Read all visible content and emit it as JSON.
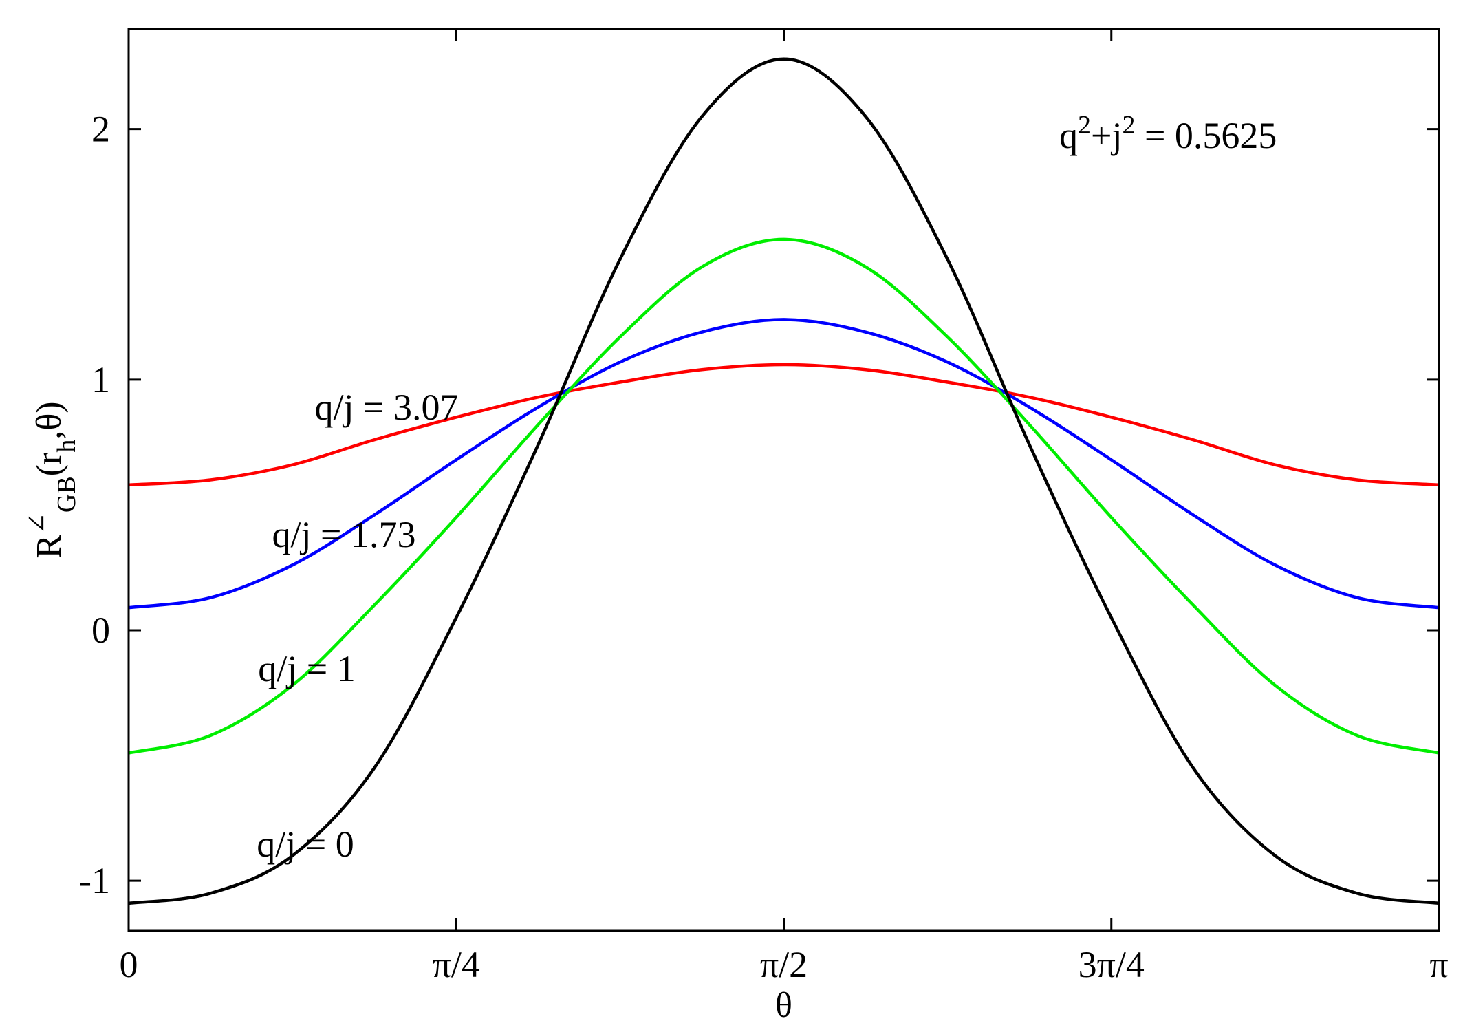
{
  "chart_data": {
    "type": "line",
    "xlabel": "θ",
    "ylabel": {
      "base": "R",
      "sup": "∠",
      "sub": "GB",
      "args_pre": "(r",
      "args_sub": "h",
      "args_post": ",θ)"
    },
    "xlim": [
      0,
      3.14159265
    ],
    "ylim": [
      -1.2,
      2.4
    ],
    "x_ticks": [
      {
        "value": 0,
        "label": "0"
      },
      {
        "value": 0.78539816,
        "label": "π/4"
      },
      {
        "value": 1.57079633,
        "label": "π/2"
      },
      {
        "value": 2.35619449,
        "label": "3π/4"
      },
      {
        "value": 3.14159265,
        "label": "π"
      }
    ],
    "y_ticks": [
      {
        "value": -1,
        "label": "-1"
      },
      {
        "value": 0,
        "label": "0"
      },
      {
        "value": 1,
        "label": "1"
      },
      {
        "value": 2,
        "label": "2"
      }
    ],
    "annotation": {
      "q": "q",
      "sup1": "2",
      "plus": "+j",
      "sup2": "2",
      "rest": " = 0.5625"
    },
    "series": [
      {
        "name": "q/j = 3.07",
        "color": "#ff0000",
        "x": [
          0,
          0.19635,
          0.3927,
          0.58905,
          0.7854,
          0.98175,
          1.1781,
          1.37445,
          1.5708,
          1.76715,
          1.9635,
          2.15985,
          2.35619,
          2.55254,
          2.74889,
          2.94524,
          3.14159
        ],
        "y": [
          0.58,
          0.6,
          0.66,
          0.76,
          0.85,
          0.93,
          0.99,
          1.04,
          1.06,
          1.04,
          0.99,
          0.93,
          0.85,
          0.76,
          0.66,
          0.6,
          0.58
        ]
      },
      {
        "name": "q/j = 1.73",
        "color": "#0000ff",
        "x": [
          0,
          0.19635,
          0.3927,
          0.58905,
          0.7854,
          0.98175,
          1.1781,
          1.37445,
          1.5708,
          1.76715,
          1.9635,
          2.15985,
          2.35619,
          2.55254,
          2.74889,
          2.94524,
          3.14159
        ],
        "y": [
          0.09,
          0.13,
          0.26,
          0.46,
          0.68,
          0.89,
          1.07,
          1.19,
          1.24,
          1.19,
          1.07,
          0.89,
          0.68,
          0.46,
          0.26,
          0.13,
          0.09
        ]
      },
      {
        "name": "q/j = 1",
        "color": "#00ee00",
        "x": [
          0,
          0.19635,
          0.3927,
          0.58905,
          0.7854,
          0.98175,
          1.1781,
          1.37445,
          1.5708,
          1.76715,
          1.9635,
          2.15985,
          2.35619,
          2.55254,
          2.74889,
          2.94524,
          3.14159
        ],
        "y": [
          -0.49,
          -0.42,
          -0.22,
          0.1,
          0.45,
          0.82,
          1.17,
          1.45,
          1.56,
          1.45,
          1.17,
          0.82,
          0.45,
          0.1,
          -0.22,
          -0.42,
          -0.49
        ]
      },
      {
        "name": "q/j = 0",
        "color": "#000000",
        "x": [
          0,
          0.19635,
          0.3927,
          0.58905,
          0.7854,
          0.98175,
          1.1781,
          1.37445,
          1.5708,
          1.76715,
          1.9635,
          2.15985,
          2.35619,
          2.55254,
          2.74889,
          2.94524,
          3.14159
        ],
        "y": [
          -1.09,
          -1.05,
          -0.9,
          -0.55,
          0.05,
          0.74,
          1.48,
          2.05,
          2.28,
          2.05,
          1.48,
          0.74,
          0.05,
          -0.55,
          -0.9,
          -1.05,
          -1.09
        ]
      }
    ]
  },
  "colors": {
    "axis": "#000000",
    "background": "#ffffff"
  }
}
